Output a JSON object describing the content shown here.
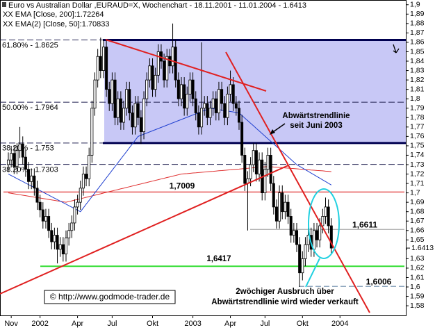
{
  "chart_data": {
    "type": "candlestick",
    "title": "Euro vs Australian Dollar ,EURAUD=X, Wochenchart - 18.11.2001 - 11.01.2004 - 1.6413",
    "ylim": [
      1.569,
      1.905
    ],
    "yticks": [
      {
        "value": 1.58,
        "label": "1,58"
      },
      {
        "value": 1.59,
        "label": "1,59"
      },
      {
        "value": 1.6,
        "label": "1,6"
      },
      {
        "value": 1.61,
        "label": "1,61"
      },
      {
        "value": 1.62,
        "label": "1,62"
      },
      {
        "value": 1.63,
        "label": "1,63"
      },
      {
        "value": 1.64,
        "label": "1,64"
      },
      {
        "value": 1.65,
        "label": "1,65"
      },
      {
        "value": 1.66,
        "label": "1,66"
      },
      {
        "value": 1.67,
        "label": "1,67"
      },
      {
        "value": 1.68,
        "label": "1,68"
      },
      {
        "value": 1.69,
        "label": "1,69"
      },
      {
        "value": 1.7,
        "label": "1,7"
      },
      {
        "value": 1.71,
        "label": "1,71"
      },
      {
        "value": 1.72,
        "label": "1,72"
      },
      {
        "value": 1.73,
        "label": "1,73"
      },
      {
        "value": 1.74,
        "label": "1,74"
      },
      {
        "value": 1.75,
        "label": "1,75"
      },
      {
        "value": 1.76,
        "label": "1,76"
      },
      {
        "value": 1.77,
        "label": "1,77"
      },
      {
        "value": 1.78,
        "label": "1,78"
      },
      {
        "value": 1.79,
        "label": "1,79"
      },
      {
        "value": 1.8,
        "label": "1,8"
      },
      {
        "value": 1.81,
        "label": "1,81"
      },
      {
        "value": 1.82,
        "label": "1,82"
      },
      {
        "value": 1.83,
        "label": "1,83"
      },
      {
        "value": 1.84,
        "label": "1,84"
      },
      {
        "value": 1.85,
        "label": "1,85"
      },
      {
        "value": 1.86,
        "label": "1,86"
      },
      {
        "value": 1.87,
        "label": "1,87"
      },
      {
        "value": 1.88,
        "label": "1,88"
      },
      {
        "value": 1.89,
        "label": "1,89"
      },
      {
        "value": 1.9,
        "label": "1,9"
      }
    ],
    "last_price": {
      "value": 1.6413,
      "label": "1.6413"
    },
    "categories": [
      null,
      "Nov",
      null,
      null,
      null,
      null,
      null,
      null,
      null,
      null,
      null,
      "2002",
      null,
      null,
      null,
      null,
      null,
      null,
      null,
      null,
      null,
      null,
      null,
      null,
      "Apr",
      null,
      null,
      null,
      null,
      null,
      null,
      null,
      null,
      null,
      null,
      null,
      "Jul",
      null,
      null,
      null,
      null,
      null,
      null,
      null,
      null,
      null,
      null,
      null,
      null,
      null,
      "Okt",
      null,
      null,
      null,
      null,
      null,
      null,
      null,
      null,
      null,
      null,
      null,
      null,
      null,
      "2003",
      null,
      null,
      null,
      null,
      null,
      null,
      null,
      null,
      null,
      null,
      null,
      null,
      "Apr",
      null,
      null,
      null,
      null,
      null,
      null,
      null,
      null,
      null,
      null,
      null,
      "Jul",
      null,
      null,
      null,
      null,
      null,
      null,
      null,
      null,
      null,
      null,
      null,
      null,
      "Okt",
      null,
      null,
      null,
      null,
      null,
      null,
      null,
      null,
      null,
      null,
      null,
      null,
      "2004"
    ],
    "open": [
      1.73,
      1.735,
      1.742,
      1.728,
      1.745,
      1.752,
      1.738,
      1.725,
      1.712,
      1.718,
      1.705,
      1.69,
      1.682,
      1.67,
      1.675,
      1.66,
      1.648,
      1.655,
      1.64,
      1.645,
      1.635,
      1.652,
      1.66,
      1.668,
      1.685,
      1.69,
      1.705,
      1.72,
      1.715,
      1.74,
      1.79,
      1.82,
      1.845,
      1.83,
      1.855,
      1.81,
      1.795,
      1.82,
      1.78,
      1.8,
      1.775,
      1.79,
      1.81,
      1.785,
      1.77,
      1.795,
      1.78,
      1.765,
      1.8,
      1.82,
      1.835,
      1.81,
      1.825,
      1.85,
      1.84,
      1.82,
      1.845,
      1.835,
      1.855,
      1.82,
      1.8,
      1.815,
      1.79,
      1.805,
      1.82,
      1.8,
      1.785,
      1.77,
      1.79,
      1.795,
      1.78,
      1.79,
      1.8,
      1.785,
      1.81,
      1.795,
      1.78,
      1.805,
      1.815,
      1.795,
      1.79,
      1.775,
      1.74,
      1.71,
      1.715,
      1.73,
      1.745,
      1.72,
      1.735,
      1.7,
      1.725,
      1.74,
      1.71,
      1.685,
      1.67,
      1.7,
      1.68,
      1.69,
      1.675,
      1.655,
      1.66,
      1.645,
      1.615,
      1.63,
      1.645,
      1.655,
      1.64,
      1.66,
      1.65,
      1.665,
      1.675,
      1.685,
      1.665,
      null,
      null,
      null
    ],
    "high": [
      1.743,
      1.75,
      1.75,
      1.753,
      1.77,
      1.76,
      1.746,
      1.733,
      1.726,
      1.726,
      1.713,
      1.698,
      1.69,
      1.683,
      1.683,
      1.668,
      1.663,
      1.663,
      1.653,
      1.653,
      1.66,
      1.668,
      1.676,
      1.693,
      1.698,
      1.713,
      1.728,
      1.728,
      1.748,
      1.798,
      1.828,
      1.853,
      1.865,
      1.863,
      1.863,
      1.818,
      1.828,
      1.828,
      1.808,
      1.808,
      1.798,
      1.818,
      1.818,
      1.793,
      1.803,
      1.803,
      1.788,
      1.808,
      1.828,
      1.843,
      1.843,
      1.833,
      1.858,
      1.858,
      1.848,
      1.853,
      1.853,
      1.88,
      1.863,
      1.828,
      1.823,
      1.823,
      1.813,
      1.828,
      1.828,
      1.808,
      1.793,
      1.86,
      1.803,
      1.803,
      1.798,
      1.808,
      1.808,
      1.818,
      1.818,
      1.803,
      1.813,
      1.83,
      1.823,
      1.803,
      1.798,
      1.783,
      1.748,
      1.723,
      1.738,
      1.753,
      1.753,
      1.743,
      1.743,
      1.733,
      1.748,
      1.748,
      1.718,
      1.693,
      1.708,
      1.708,
      1.698,
      1.698,
      1.683,
      1.668,
      1.668,
      1.653,
      1.638,
      1.653,
      1.663,
      1.663,
      1.668,
      1.668,
      1.673,
      1.683,
      1.695,
      1.693,
      1.673,
      null,
      null,
      null
    ],
    "low": [
      1.722,
      1.727,
      1.72,
      1.72,
      1.737,
      1.73,
      1.717,
      1.704,
      1.704,
      1.697,
      1.682,
      1.674,
      1.662,
      1.662,
      1.652,
      1.64,
      1.64,
      1.625,
      1.632,
      1.627,
      1.627,
      1.644,
      1.652,
      1.66,
      1.677,
      1.682,
      1.697,
      1.707,
      1.707,
      1.732,
      1.782,
      1.812,
      1.822,
      1.822,
      1.802,
      1.787,
      1.787,
      1.772,
      1.772,
      1.767,
      1.767,
      1.782,
      1.777,
      1.762,
      1.762,
      1.772,
      1.752,
      1.757,
      1.792,
      1.812,
      1.802,
      1.802,
      1.817,
      1.832,
      1.812,
      1.812,
      1.827,
      1.827,
      1.812,
      1.792,
      1.792,
      1.782,
      1.782,
      1.797,
      1.792,
      1.777,
      1.762,
      1.762,
      1.782,
      1.772,
      1.772,
      1.782,
      1.777,
      1.777,
      1.787,
      1.772,
      1.772,
      1.797,
      1.787,
      1.782,
      1.767,
      1.732,
      1.702,
      1.66,
      1.707,
      1.722,
      1.712,
      1.712,
      1.692,
      1.692,
      1.717,
      1.702,
      1.677,
      1.662,
      1.662,
      1.672,
      1.672,
      1.667,
      1.647,
      1.647,
      1.637,
      1.6,
      1.607,
      1.622,
      1.637,
      1.632,
      1.632,
      1.642,
      1.642,
      1.657,
      1.667,
      1.657,
      1.636,
      null,
      null,
      null
    ],
    "close": [
      1.735,
      1.742,
      1.728,
      1.745,
      1.752,
      1.738,
      1.725,
      1.712,
      1.718,
      1.705,
      1.69,
      1.682,
      1.67,
      1.675,
      1.66,
      1.648,
      1.655,
      1.64,
      1.645,
      1.635,
      1.652,
      1.66,
      1.668,
      1.685,
      1.69,
      1.705,
      1.72,
      1.715,
      1.74,
      1.79,
      1.82,
      1.845,
      1.83,
      1.855,
      1.81,
      1.795,
      1.82,
      1.78,
      1.8,
      1.775,
      1.79,
      1.81,
      1.785,
      1.77,
      1.795,
      1.78,
      1.765,
      1.8,
      1.82,
      1.835,
      1.81,
      1.825,
      1.85,
      1.84,
      1.82,
      1.845,
      1.835,
      1.855,
      1.82,
      1.8,
      1.815,
      1.79,
      1.805,
      1.82,
      1.8,
      1.785,
      1.77,
      1.79,
      1.795,
      1.78,
      1.79,
      1.8,
      1.785,
      1.81,
      1.795,
      1.78,
      1.805,
      1.815,
      1.795,
      1.79,
      1.775,
      1.74,
      1.71,
      1.715,
      1.73,
      1.745,
      1.72,
      1.735,
      1.7,
      1.725,
      1.74,
      1.71,
      1.685,
      1.67,
      1.7,
      1.68,
      1.69,
      1.675,
      1.655,
      1.66,
      1.645,
      1.615,
      1.63,
      1.645,
      1.655,
      1.64,
      1.66,
      1.65,
      1.665,
      1.675,
      1.685,
      1.665,
      1.6413,
      null,
      null,
      null
    ],
    "up_color": "#ffffff",
    "down_color": "#000000",
    "series": [
      {
        "name": "XX EMA [Close, 200]:1.72264",
        "color": "#e03030",
        "values": [
          1.7,
          1.6995,
          1.699,
          1.6985,
          1.698,
          1.6975,
          1.697,
          1.6965,
          1.696,
          1.6955,
          1.695,
          1.6945,
          1.694,
          1.6935,
          1.693,
          1.6925,
          1.692,
          1.6915,
          1.691,
          1.6905,
          1.69,
          1.6908,
          1.6915,
          1.6923,
          1.693,
          1.6938,
          1.6945,
          1.6953,
          1.696,
          1.6968,
          1.6975,
          1.6983,
          1.699,
          1.6998,
          1.7005,
          1.7013,
          1.702,
          1.7028,
          1.7035,
          1.7043,
          1.705,
          1.7058,
          1.7065,
          1.7073,
          1.708,
          1.7088,
          1.7095,
          1.7103,
          1.711,
          1.7118,
          1.7125,
          1.7133,
          1.714,
          1.7148,
          1.7155,
          1.7163,
          1.717,
          1.7178,
          1.7185,
          1.7193,
          1.72,
          1.7203,
          1.7205,
          1.7208,
          1.7211,
          1.7213,
          1.7216,
          1.7219,
          1.7221,
          1.7224,
          1.7227,
          1.7229,
          1.7232,
          1.7235,
          1.7237,
          1.724,
          1.7243,
          1.7245,
          1.7248,
          1.7251,
          1.7253,
          1.7256,
          1.7259,
          1.7261,
          1.7264,
          1.7267,
          1.7269,
          1.7272,
          1.7275,
          1.7277,
          1.728,
          1.7278,
          1.7275,
          1.7273,
          1.727,
          1.7268,
          1.7265,
          1.7263,
          1.726,
          1.7258,
          1.7256,
          1.7253,
          1.7251,
          1.7248,
          1.7246,
          1.7243,
          1.7241,
          1.7238,
          1.7236,
          1.7234,
          1.7231,
          1.7229,
          1.72264,
          null,
          null,
          null
        ]
      },
      {
        "name": "XX EMA(2) [Close, 50]:1.70833",
        "color": "#2040d0",
        "values": [
          1.72,
          1.7184,
          1.7168,
          1.7152,
          1.7136,
          1.712,
          1.7104,
          1.7088,
          1.7072,
          1.7056,
          1.704,
          1.7024,
          1.7008,
          1.6992,
          1.6976,
          1.696,
          1.6944,
          1.6928,
          1.6912,
          1.6896,
          1.688,
          1.6864,
          1.6848,
          1.6832,
          1.6816,
          1.68,
          1.684,
          1.688,
          1.692,
          1.696,
          1.7,
          1.704,
          1.708,
          1.712,
          1.716,
          1.72,
          1.724,
          1.728,
          1.732,
          1.736,
          1.74,
          1.744,
          1.748,
          1.752,
          1.756,
          1.76,
          1.7612,
          1.7624,
          1.7636,
          1.7648,
          1.766,
          1.7672,
          1.7684,
          1.7696,
          1.7708,
          1.772,
          1.7732,
          1.7744,
          1.7756,
          1.7768,
          1.778,
          1.7792,
          1.7804,
          1.7816,
          1.7828,
          1.784,
          1.7852,
          1.7864,
          1.7876,
          1.7888,
          1.79,
          1.7895,
          1.789,
          1.7885,
          1.788,
          1.7875,
          1.787,
          1.7865,
          1.786,
          1.7855,
          1.785,
          1.7823,
          1.7795,
          1.7768,
          1.774,
          1.7713,
          1.7685,
          1.7658,
          1.763,
          1.7603,
          1.7575,
          1.7548,
          1.752,
          1.7493,
          1.7465,
          1.7438,
          1.741,
          1.7383,
          1.7355,
          1.7328,
          1.73,
          1.7282,
          1.7264,
          1.7246,
          1.7228,
          1.721,
          1.7192,
          1.7174,
          1.7156,
          1.7138,
          1.712,
          1.7102,
          1.70833,
          null,
          null,
          null
        ]
      }
    ],
    "fib": [
      {
        "value": 1.8625,
        "label": "61.80% - 1.8625"
      },
      {
        "value": 1.7964,
        "label": "50.00% - 1.7964"
      },
      {
        "value": 1.753,
        "label": "38.20% - 1.753"
      },
      {
        "value": 1.7303,
        "label": "38.20% - 1.7303"
      }
    ],
    "zone_color": "#c8c8f6",
    "levels": [
      {
        "value": 1.7009,
        "label": "1,7009",
        "color": "#e03030"
      },
      {
        "value": 1.6611,
        "label": "1,6611",
        "color": "#a8a8a8"
      },
      {
        "value": 1.6006,
        "label": "1,6006",
        "color": "#6a8aa8"
      },
      {
        "value": 1.622,
        "color": "#33dd33"
      }
    ],
    "annotations": [
      {
        "lines": [
          "1,6417"
        ]
      },
      {
        "lines": [
          "Abwärtstrendlinie",
          "seit Juni 2003"
        ]
      },
      {
        "lines": [
          "2wöchiger Ausbruch über",
          "Abwärtstrendlinie wird wieder verkauft"
        ]
      },
      {
        "lines": [
          "© http://www.godmode-trader.de"
        ]
      }
    ]
  }
}
